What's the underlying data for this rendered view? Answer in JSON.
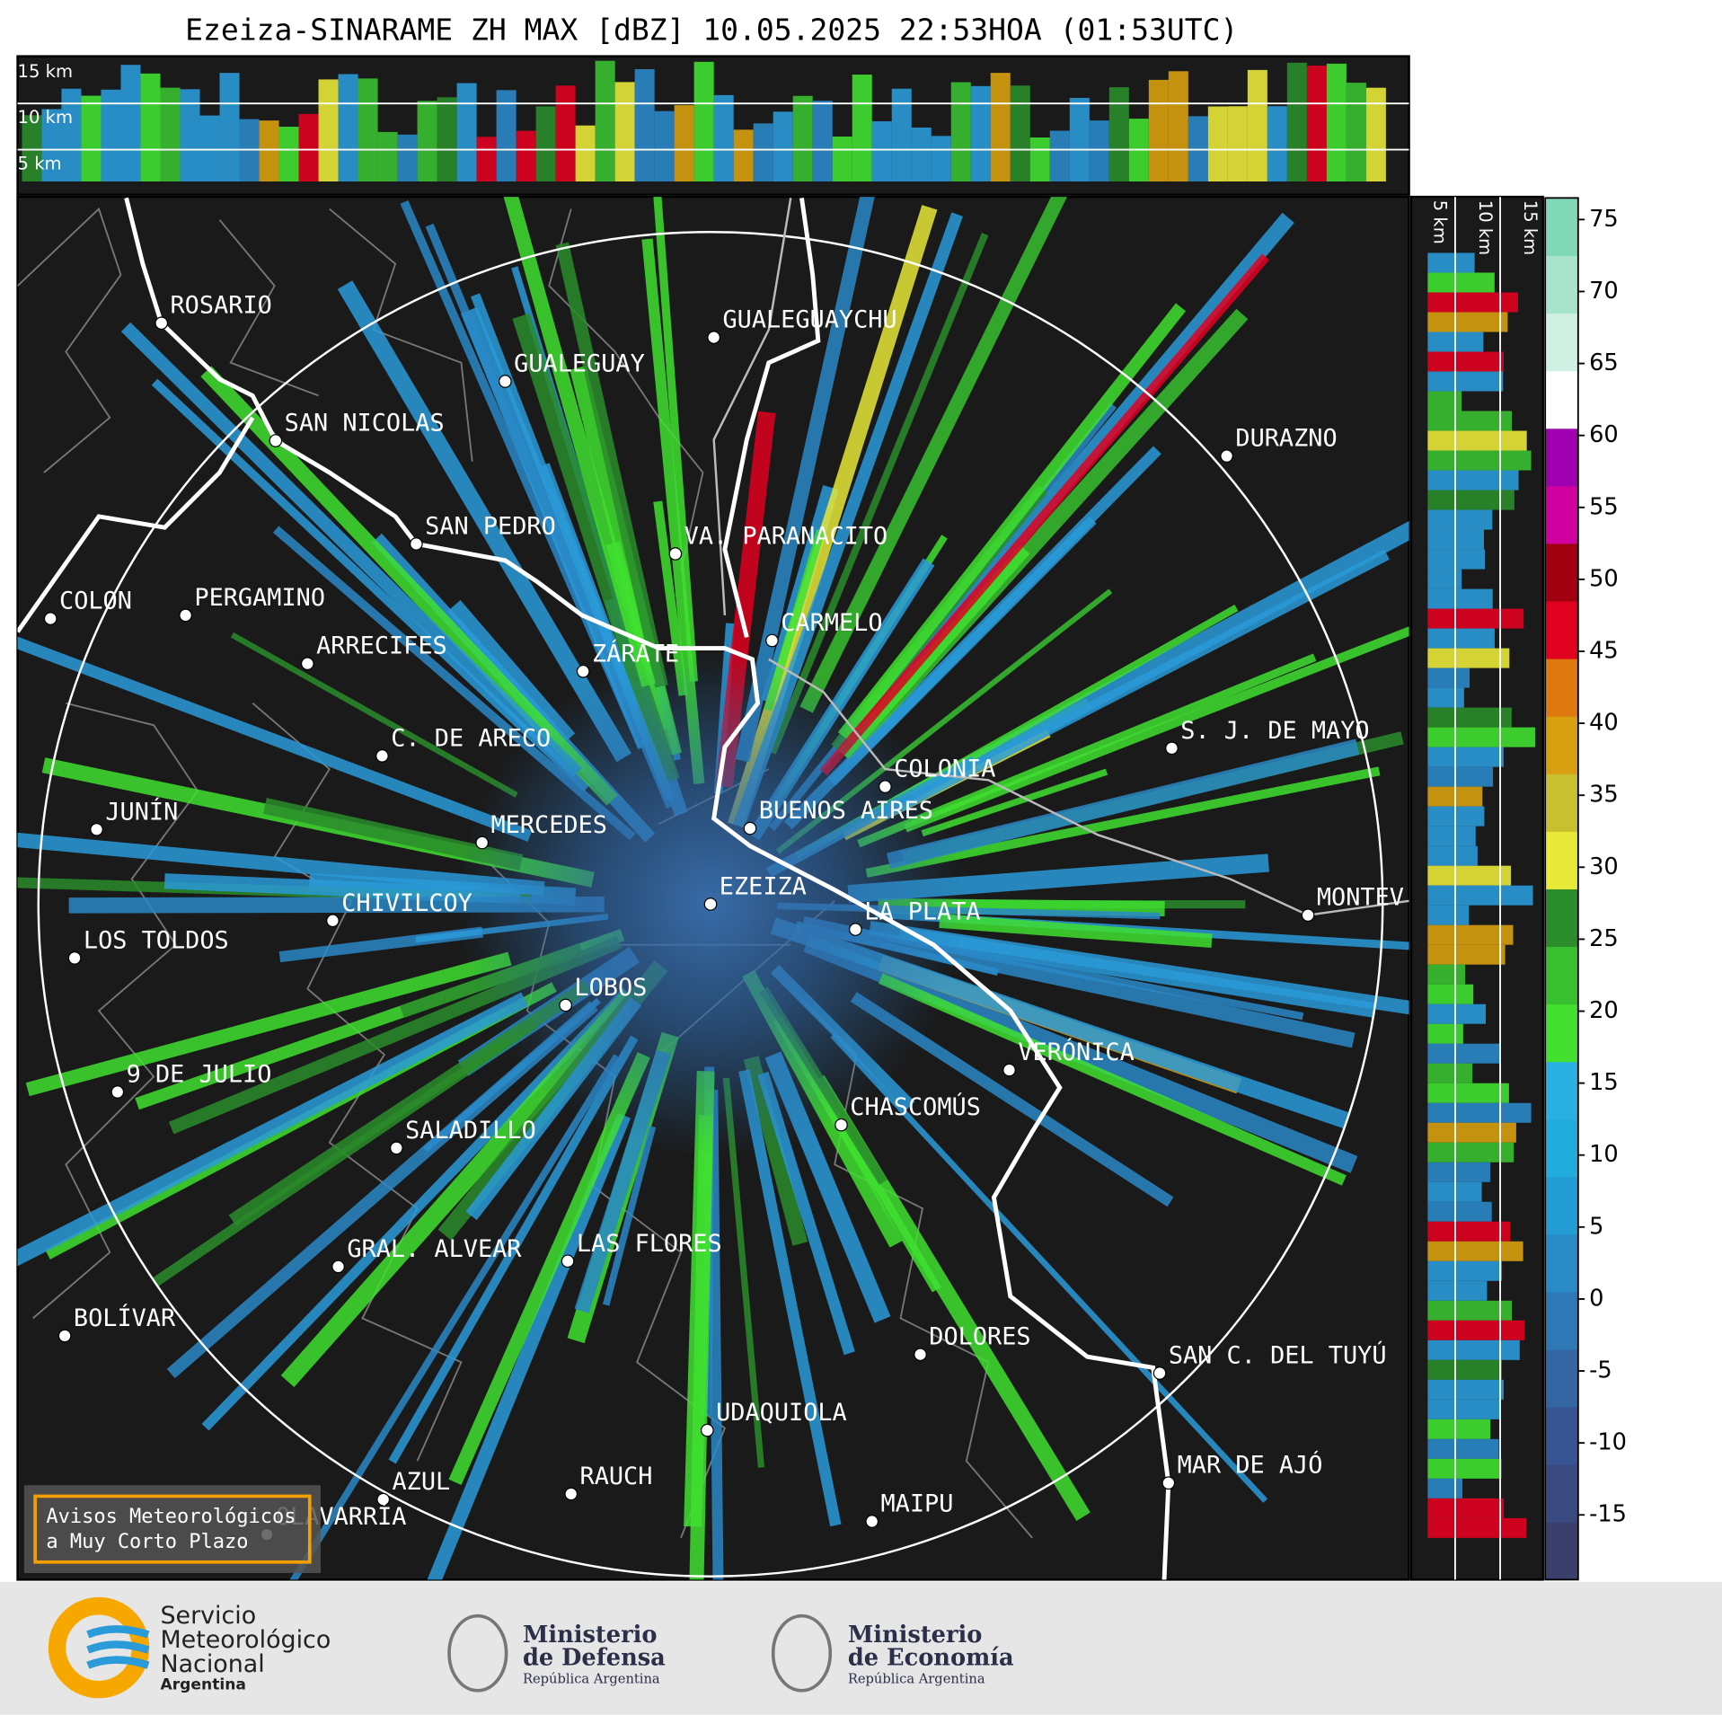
{
  "title": "Ezeiza-SINARAME ZH MAX [dBZ] 10.05.2025 22:53HOA (01:53UTC)",
  "top_panel": {
    "labels": [
      "15 km",
      "10 km",
      "5 km"
    ]
  },
  "side_panel": {
    "labels": [
      "5 km",
      "10 km",
      "15 km"
    ]
  },
  "colorbar": {
    "lim": [
      -19.5,
      76.5
    ],
    "ticks": [
      75,
      70,
      65,
      60,
      55,
      50,
      45,
      40,
      35,
      30,
      25,
      20,
      15,
      10,
      5,
      0,
      -5,
      -10,
      -15
    ],
    "colors": [
      "#3a3f6e",
      "#3a4a80",
      "#375592",
      "#3466a4",
      "#2e78b6",
      "#2a8ac6",
      "#239cd4",
      "#22acdc",
      "#2ab0e0",
      "#44e030",
      "#38c030",
      "#2a8c2a",
      "#e8e838",
      "#c8c030",
      "#d8a010",
      "#e07810",
      "#e00020",
      "#a00010",
      "#d000a0",
      "#a000b0",
      "#ffffff",
      "#d0f0e4",
      "#a8e4cc",
      "#80d8b8"
    ]
  },
  "cities": [
    "ROSARIO",
    "GUALEGUAYCHU",
    "GUALEGUAY",
    "SAN NICOLAS",
    "DURAZNO",
    "SAN PEDRO",
    "VA. PARANACITO",
    "COLON",
    "PERGAMINO",
    "CARMELO",
    "ARRECIFES",
    "ZÁRATE",
    "C. DE ARECO",
    "S. J. DE MAYO",
    "COLONIA",
    "BUENOS AIRES",
    "JUNÍN",
    "MERCEDES",
    "EZEIZA",
    "CHIVILCOY",
    "MONTEV",
    "LA PLATA",
    "LOS TOLDOS",
    "LOBOS",
    "VERÓNICA",
    "9 DE JULIO",
    "CHASCOMÚS",
    "SALADILLO",
    "GRAL. ALVEAR",
    "LAS FLORES",
    "BOLÍVAR",
    "DOLORES",
    "SAN C. DEL TUYÚ",
    "UDAQUIOLA",
    "MAR DE AJÓ",
    "RAUCH",
    "AZUL",
    "MAIPU",
    "OLAVARRÍA"
  ],
  "notice": [
    "Avisos Meteorológicos",
    "a Muy Corto Plazo"
  ],
  "footer": {
    "smn": [
      "Servicio",
      "Meteorológico",
      "Nacional",
      "Argentina"
    ],
    "defensa": [
      "Ministerio",
      "de Defensa",
      "República Argentina"
    ],
    "economia": [
      "Ministerio",
      "de Economía",
      "República Argentina"
    ]
  }
}
